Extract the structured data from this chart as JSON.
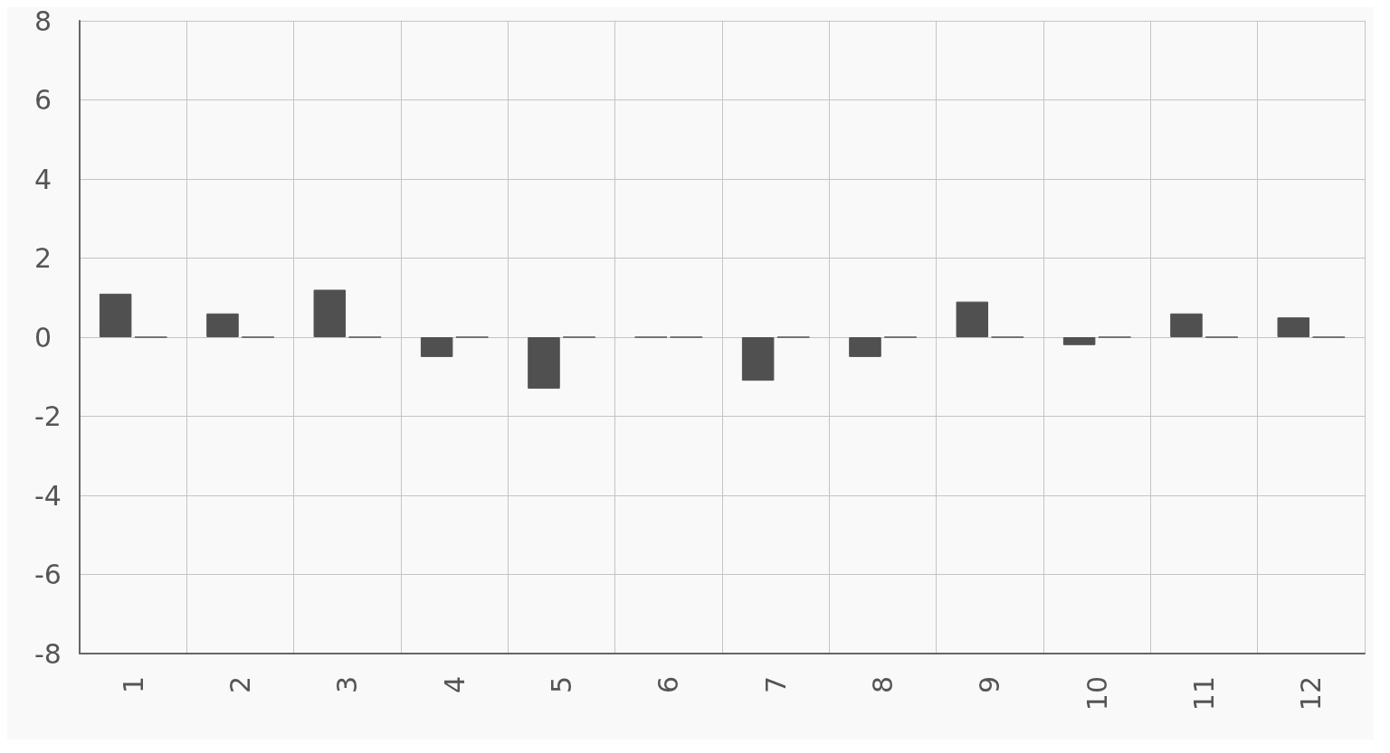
{
  "chart_data": {
    "type": "bar",
    "categories": [
      "1",
      "2",
      "3",
      "4",
      "5",
      "6",
      "7",
      "8",
      "9",
      "10",
      "11",
      "12"
    ],
    "series": [
      {
        "color": "#505050",
        "values": [
          1.1,
          0.6,
          1.2,
          -0.5,
          -1.3,
          0,
          -1.1,
          -0.5,
          0.9,
          -0.2,
          0.6,
          0.5
        ]
      },
      {
        "color": "#505050",
        "values": [
          0,
          0,
          0,
          0,
          0,
          0,
          0,
          0,
          0,
          0,
          0,
          0
        ]
      }
    ],
    "ylim": [
      -8,
      8
    ],
    "yticks": [
      -8,
      -6,
      -4,
      -2,
      0,
      2,
      4,
      6,
      8
    ],
    "grid": true
  }
}
